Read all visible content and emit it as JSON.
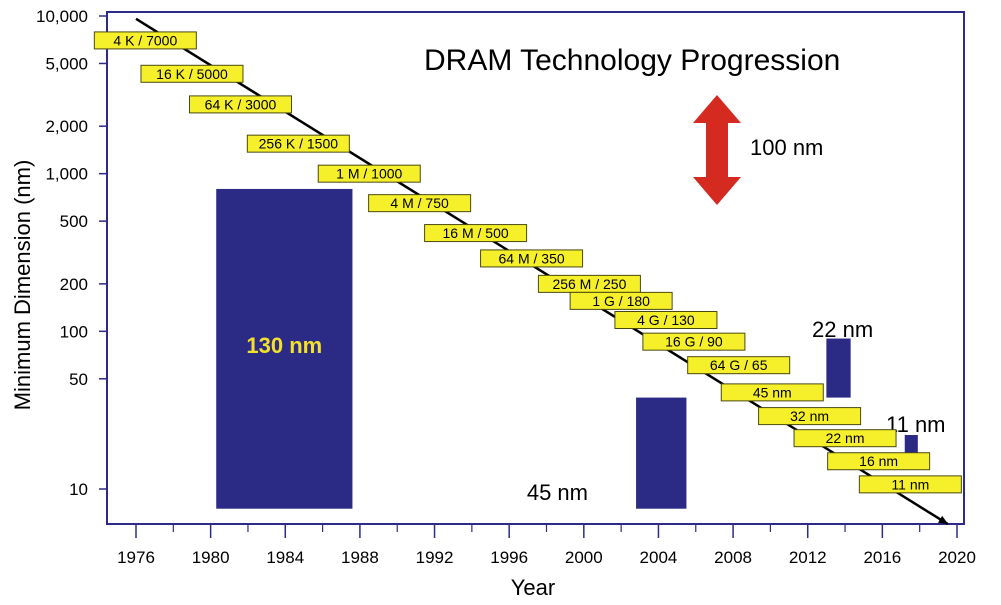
{
  "chart_data": {
    "type": "line",
    "title": "DRAM Technology  Progression",
    "xlabel": "Year",
    "ylabel": "Minimum Dimension (nm)",
    "yscale": "log",
    "xlim": [
      1974,
      2020
    ],
    "ylim": [
      7,
      10000
    ],
    "grid": false,
    "x_ticks": [
      1976,
      1980,
      1984,
      1988,
      1992,
      1996,
      2000,
      2004,
      2008,
      2012,
      2016,
      2020
    ],
    "x_minor_ticks": [
      1978,
      1982,
      1986,
      1990,
      1994,
      1998,
      2002,
      2006,
      2010,
      2014,
      2018
    ],
    "y_ticks": [
      {
        "value": 10000,
        "label": "10,000"
      },
      {
        "value": 5000,
        "label": "5,000"
      },
      {
        "value": 2000,
        "label": "2,000"
      },
      {
        "value": 1000,
        "label": "1,000"
      },
      {
        "value": 500,
        "label": "500"
      },
      {
        "value": 200,
        "label": "200"
      },
      {
        "value": 100,
        "label": "100"
      },
      {
        "value": 50,
        "label": "50"
      },
      {
        "value": 10,
        "label": "10"
      }
    ],
    "trend_line": {
      "x": [
        1976,
        2019.5
      ],
      "y": [
        9600,
        6
      ]
    },
    "generations": [
      {
        "label": "4 K / 7000",
        "year": 1976.5,
        "value": 7000
      },
      {
        "label": "16 K / 5000",
        "year": 1979,
        "value": 4300
      },
      {
        "label": "64 K / 3000",
        "year": 1981.6,
        "value": 2750
      },
      {
        "label": "256 K / 1500",
        "year": 1984.7,
        "value": 1550
      },
      {
        "label": "1 M / 1000",
        "year": 1988.5,
        "value": 1000
      },
      {
        "label": "4 M / 750",
        "year": 1991.2,
        "value": 650
      },
      {
        "label": "16 M / 500",
        "year": 1994.2,
        "value": 420
      },
      {
        "label": "64 M / 350",
        "year": 1997.2,
        "value": 290
      },
      {
        "label": "256 M / 250",
        "year": 2000.3,
        "value": 200
      },
      {
        "label": "1 G / 180",
        "year": 2002,
        "value": 156
      },
      {
        "label": "4 G / 130",
        "year": 2004.4,
        "value": 118
      },
      {
        "label": "16 G / 90",
        "year": 2005.9,
        "value": 86
      },
      {
        "label": "64 G / 65",
        "year": 2008.3,
        "value": 61
      },
      {
        "label": "45 nm",
        "year": 2010.1,
        "value": 41
      },
      {
        "label": "32 nm",
        "year": 2012.1,
        "value": 29
      },
      {
        "label": "22 nm",
        "year": 2014,
        "value": 21
      },
      {
        "label": "16 nm",
        "year": 2015.8,
        "value": 15
      },
      {
        "label": "11 nm",
        "year": 2017.5,
        "value": 10.7
      }
    ],
    "node_bars": [
      {
        "label": "130 nm",
        "x0": 1980.3,
        "x1": 1987.6,
        "y0": 7.5,
        "y1": 800,
        "label_color": "#f2e02c",
        "label_inside": true
      },
      {
        "label": "45 nm",
        "x0": 2002.8,
        "x1": 2005.5,
        "y0": 7.5,
        "y1": 38,
        "label_color": "#000000",
        "label_inside": false
      },
      {
        "label": "22 nm",
        "x0": 2013,
        "x1": 2014.3,
        "y0": 38,
        "y1": 90,
        "label_color": "#000000",
        "label_inside": false
      },
      {
        "label": "11 nm",
        "x0": 2017.2,
        "x1": 2017.9,
        "y0": 14,
        "y1": 22,
        "label_color": "#000000",
        "label_inside": false
      }
    ],
    "scale_arrow": {
      "label": "100 nm"
    }
  },
  "colors": {
    "axis": "#2e2a8a",
    "node_bar": "#2b2a84",
    "box_fill": "#f6f02a",
    "box_stroke": "#4a4a10",
    "arrow": "#d42a1f",
    "trend": "#000000"
  }
}
